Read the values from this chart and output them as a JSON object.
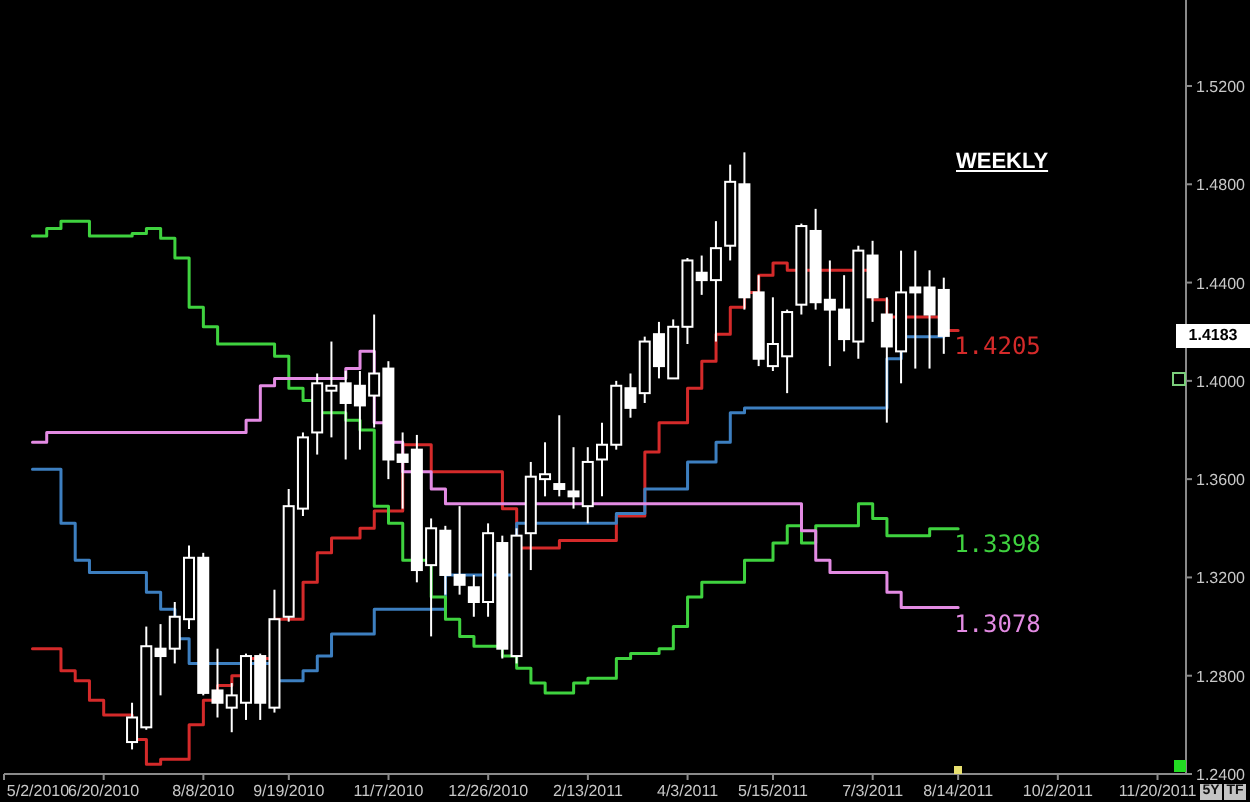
{
  "chart_data": {
    "type": "candlestick",
    "title": "WEEKLY",
    "color": "#ffffff",
    "x": [
      "2010-07-04",
      "2010-07-11",
      "2010-07-18",
      "2010-07-25",
      "2010-08-01",
      "2010-08-08",
      "2010-08-15",
      "2010-08-22",
      "2010-08-29",
      "2010-09-05",
      "2010-09-12",
      "2010-09-19",
      "2010-09-26",
      "2010-10-03",
      "2010-10-10",
      "2010-10-17",
      "2010-10-24",
      "2010-10-31",
      "2010-11-07",
      "2010-11-14",
      "2010-11-21",
      "2010-11-28",
      "2010-12-05",
      "2010-12-12",
      "2010-12-19",
      "2010-12-26",
      "2011-01-02",
      "2011-01-09",
      "2011-01-16",
      "2011-01-23",
      "2011-01-30",
      "2011-02-06",
      "2011-02-13",
      "2011-02-20",
      "2011-02-27",
      "2011-03-06",
      "2011-03-13",
      "2011-03-20",
      "2011-03-27",
      "2011-04-03",
      "2011-04-10",
      "2011-04-17",
      "2011-04-24",
      "2011-05-01",
      "2011-05-08",
      "2011-05-15",
      "2011-05-22",
      "2011-05-29",
      "2011-06-05",
      "2011-06-12",
      "2011-06-19",
      "2011-06-26",
      "2011-07-03",
      "2011-07-10",
      "2011-07-17",
      "2011-07-24",
      "2011-07-31",
      "2011-08-07"
    ],
    "ohlc": [
      [
        1.253,
        1.269,
        1.25,
        1.263
      ],
      [
        1.259,
        1.3,
        1.258,
        1.292
      ],
      [
        1.291,
        1.301,
        1.272,
        1.288
      ],
      [
        1.291,
        1.31,
        1.285,
        1.304
      ],
      [
        1.303,
        1.333,
        1.299,
        1.328
      ],
      [
        1.328,
        1.33,
        1.272,
        1.273
      ],
      [
        1.274,
        1.291,
        1.263,
        1.269
      ],
      [
        1.267,
        1.277,
        1.257,
        1.272
      ],
      [
        1.269,
        1.289,
        1.262,
        1.288
      ],
      [
        1.288,
        1.289,
        1.262,
        1.269
      ],
      [
        1.267,
        1.315,
        1.265,
        1.303
      ],
      [
        1.304,
        1.356,
        1.302,
        1.349
      ],
      [
        1.348,
        1.379,
        1.345,
        1.377
      ],
      [
        1.379,
        1.403,
        1.37,
        1.399
      ],
      [
        1.396,
        1.416,
        1.377,
        1.398
      ],
      [
        1.399,
        1.404,
        1.368,
        1.391
      ],
      [
        1.398,
        1.404,
        1.372,
        1.39
      ],
      [
        1.394,
        1.427,
        1.381,
        1.403
      ],
      [
        1.405,
        1.408,
        1.36,
        1.368
      ],
      [
        1.37,
        1.379,
        1.348,
        1.367
      ],
      [
        1.372,
        1.378,
        1.318,
        1.323
      ],
      [
        1.325,
        1.344,
        1.296,
        1.34
      ],
      [
        1.339,
        1.341,
        1.313,
        1.321
      ],
      [
        1.321,
        1.349,
        1.313,
        1.317
      ],
      [
        1.316,
        1.321,
        1.304,
        1.31
      ],
      [
        1.31,
        1.342,
        1.304,
        1.338
      ],
      [
        1.334,
        1.337,
        1.287,
        1.291
      ],
      [
        1.288,
        1.34,
        1.285,
        1.337
      ],
      [
        1.338,
        1.367,
        1.323,
        1.361
      ],
      [
        1.36,
        1.375,
        1.353,
        1.362
      ],
      [
        1.358,
        1.386,
        1.353,
        1.356
      ],
      [
        1.355,
        1.373,
        1.348,
        1.353
      ],
      [
        1.349,
        1.373,
        1.342,
        1.367
      ],
      [
        1.368,
        1.383,
        1.353,
        1.374
      ],
      [
        1.374,
        1.4,
        1.372,
        1.398
      ],
      [
        1.397,
        1.403,
        1.385,
        1.389
      ],
      [
        1.395,
        1.418,
        1.391,
        1.416
      ],
      [
        1.419,
        1.424,
        1.401,
        1.406
      ],
      [
        1.401,
        1.425,
        1.401,
        1.422
      ],
      [
        1.422,
        1.45,
        1.415,
        1.449
      ],
      [
        1.444,
        1.451,
        1.435,
        1.441
      ],
      [
        1.441,
        1.465,
        1.416,
        1.454
      ],
      [
        1.455,
        1.488,
        1.449,
        1.481
      ],
      [
        1.48,
        1.493,
        1.429,
        1.434
      ],
      [
        1.436,
        1.443,
        1.406,
        1.409
      ],
      [
        1.406,
        1.434,
        1.404,
        1.415
      ],
      [
        1.41,
        1.429,
        1.395,
        1.428
      ],
      [
        1.431,
        1.464,
        1.427,
        1.463
      ],
      [
        1.461,
        1.47,
        1.429,
        1.432
      ],
      [
        1.433,
        1.449,
        1.406,
        1.429
      ],
      [
        1.429,
        1.443,
        1.412,
        1.417
      ],
      [
        1.416,
        1.455,
        1.409,
        1.453
      ],
      [
        1.451,
        1.457,
        1.424,
        1.434
      ],
      [
        1.427,
        1.434,
        1.383,
        1.414
      ],
      [
        1.412,
        1.453,
        1.399,
        1.436
      ],
      [
        1.438,
        1.453,
        1.405,
        1.436
      ],
      [
        1.438,
        1.445,
        1.405,
        1.427
      ],
      [
        1.437,
        1.442,
        1.411,
        1.4183
      ]
    ],
    "series": [
      {
        "type": "step",
        "color": "#d42a2a",
        "x": [
          "2010-05-16",
          "2010-05-30",
          "2010-06-06",
          "2010-06-13",
          "2010-06-20",
          "2010-07-04",
          "2010-07-11",
          "2010-07-18",
          "2010-08-01",
          "2010-08-08",
          "2010-08-15",
          "2010-08-22",
          "2010-08-29",
          "2010-09-12",
          "2010-09-26",
          "2010-10-03",
          "2010-10-10",
          "2010-10-24",
          "2010-10-31",
          "2010-11-14",
          "2010-11-28",
          "2011-01-02",
          "2011-01-09",
          "2011-01-30",
          "2011-02-27",
          "2011-03-13",
          "2011-03-20",
          "2011-04-03",
          "2011-04-10",
          "2011-04-17",
          "2011-04-24",
          "2011-05-01",
          "2011-05-08",
          "2011-05-15",
          "2011-05-22",
          "2011-07-03",
          "2011-07-10",
          "2011-08-07",
          "2011-08-14"
        ],
        "values": [
          1.291,
          1.282,
          1.278,
          1.27,
          1.264,
          1.254,
          1.244,
          1.246,
          1.26,
          1.27,
          1.276,
          1.28,
          1.287,
          1.303,
          1.318,
          1.33,
          1.336,
          1.34,
          1.347,
          1.374,
          1.363,
          1.348,
          1.332,
          1.335,
          1.345,
          1.371,
          1.383,
          1.397,
          1.408,
          1.419,
          1.43,
          1.436,
          1.443,
          1.448,
          1.445,
          1.433,
          1.426,
          1.4205,
          1.4205
        ]
      },
      {
        "type": "step",
        "color": "#3d7fc0",
        "x": [
          "2010-05-16",
          "2010-05-30",
          "2010-06-06",
          "2010-06-13",
          "2010-07-11",
          "2010-07-18",
          "2010-07-25",
          "2010-08-01",
          "2010-09-12",
          "2010-09-26",
          "2010-10-03",
          "2010-10-10",
          "2010-10-31",
          "2010-12-05",
          "2011-01-09",
          "2011-02-27",
          "2011-03-13",
          "2011-04-03",
          "2011-04-17",
          "2011-04-24",
          "2011-05-01",
          "2011-07-10",
          "2011-07-17",
          "2011-08-07"
        ],
        "values": [
          1.364,
          1.342,
          1.327,
          1.322,
          1.314,
          1.307,
          1.295,
          1.285,
          1.278,
          1.282,
          1.288,
          1.297,
          1.307,
          1.321,
          1.342,
          1.346,
          1.356,
          1.367,
          1.375,
          1.387,
          1.389,
          1.409,
          1.418,
          1.418
        ]
      },
      {
        "type": "step",
        "color": "#3fd23f",
        "x": [
          "2010-05-16",
          "2010-05-23",
          "2010-05-30",
          "2010-06-13",
          "2010-07-04",
          "2010-07-11",
          "2010-07-18",
          "2010-07-25",
          "2010-08-01",
          "2010-08-08",
          "2010-08-15",
          "2010-09-12",
          "2010-09-19",
          "2010-09-26",
          "2010-10-03",
          "2010-10-17",
          "2010-10-24",
          "2010-10-31",
          "2010-11-07",
          "2010-11-14",
          "2010-11-28",
          "2010-12-05",
          "2010-12-12",
          "2010-12-19",
          "2011-01-02",
          "2011-01-09",
          "2011-01-16",
          "2011-01-23",
          "2011-02-06",
          "2011-02-13",
          "2011-02-27",
          "2011-03-06",
          "2011-03-20",
          "2011-03-27",
          "2011-04-03",
          "2011-04-10",
          "2011-05-01",
          "2011-05-15",
          "2011-05-22",
          "2011-05-29",
          "2011-06-05",
          "2011-06-26",
          "2011-07-03",
          "2011-07-10",
          "2011-07-31",
          "2011-08-14"
        ],
        "values": [
          1.459,
          1.462,
          1.465,
          1.459,
          1.46,
          1.462,
          1.458,
          1.45,
          1.43,
          1.422,
          1.415,
          1.41,
          1.397,
          1.392,
          1.387,
          1.384,
          1.38,
          1.349,
          1.342,
          1.327,
          1.312,
          1.303,
          1.296,
          1.292,
          1.288,
          1.283,
          1.277,
          1.273,
          1.277,
          1.279,
          1.287,
          1.289,
          1.291,
          1.3,
          1.312,
          1.318,
          1.327,
          1.334,
          1.341,
          1.334,
          1.341,
          1.35,
          1.344,
          1.337,
          1.3398,
          1.3398
        ]
      },
      {
        "type": "step",
        "color": "#e38be3",
        "x": [
          "2010-05-16",
          "2010-05-23",
          "2010-08-29",
          "2010-09-05",
          "2010-09-12",
          "2010-10-17",
          "2010-10-24",
          "2010-10-31",
          "2010-11-07",
          "2010-11-14",
          "2010-11-28",
          "2010-12-05",
          "2011-05-29",
          "2011-06-05",
          "2011-06-12",
          "2011-07-10",
          "2011-07-17",
          "2011-08-14"
        ],
        "values": [
          1.375,
          1.379,
          1.384,
          1.398,
          1.401,
          1.405,
          1.412,
          1.383,
          1.375,
          1.363,
          1.356,
          1.35,
          1.339,
          1.327,
          1.322,
          1.314,
          1.3078,
          1.3078
        ]
      }
    ],
    "xlim": [
      "2010-05-02",
      "2011-12-04"
    ],
    "xticks": [
      {
        "value": "2010-05-02",
        "label": "5/2/2010"
      },
      {
        "value": "2010-06-20",
        "label": "6/20/2010"
      },
      {
        "value": "2010-08-08",
        "label": "8/8/2010"
      },
      {
        "value": "2010-09-19",
        "label": "9/19/2010"
      },
      {
        "value": "2010-11-07",
        "label": "11/7/2010"
      },
      {
        "value": "2010-12-26",
        "label": "12/26/2010"
      },
      {
        "value": "2011-02-13",
        "label": "2/13/2011"
      },
      {
        "value": "2011-04-03",
        "label": "4/3/2011"
      },
      {
        "value": "2011-05-15",
        "label": "5/15/2011"
      },
      {
        "value": "2011-07-03",
        "label": "7/3/2011"
      },
      {
        "value": "2011-08-14",
        "label": "8/14/2011"
      },
      {
        "value": "2011-10-02",
        "label": "10/2/2011"
      },
      {
        "value": "2011-11-20",
        "label": "11/20/2011"
      }
    ],
    "ylim": [
      1.24,
      1.555
    ],
    "yticks": [
      {
        "value": 1.24,
        "label": "1.2400"
      },
      {
        "value": 1.28,
        "label": "1.2800"
      },
      {
        "value": 1.32,
        "label": "1.3200"
      },
      {
        "value": 1.36,
        "label": "1.3600"
      },
      {
        "value": 1.4,
        "label": "1.4000"
      },
      {
        "value": 1.44,
        "label": "1.4400"
      },
      {
        "value": 1.48,
        "label": "1.4800"
      },
      {
        "value": 1.52,
        "label": "1.5200"
      }
    ],
    "annotations": [
      {
        "text": "1.4205",
        "x": "2011-08-14",
        "y": 1.4205
      },
      {
        "text": "1.4183",
        "y": 1.4183
      },
      {
        "text": "1.3398",
        "x": "2011-08-14",
        "y": 1.3398
      },
      {
        "text": "1.3078",
        "x": "2011-08-14",
        "y": 1.3078
      },
      "5Y",
      "TF"
    ]
  }
}
